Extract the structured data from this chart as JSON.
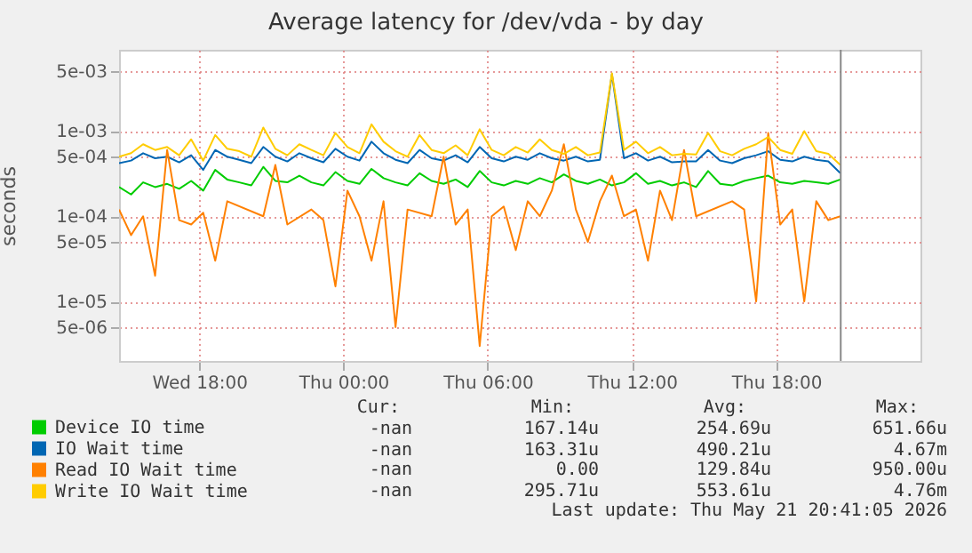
{
  "chart_data": {
    "type": "line",
    "title": "Average latency for /dev/vda - by day",
    "ylabel": "seconds",
    "log": "y",
    "grid": true,
    "legend": "bottom left",
    "x": [
      "2026-05-20T14:40",
      "2026-05-20T15:10",
      "2026-05-20T15:40",
      "2026-05-20T16:10",
      "2026-05-20T16:40",
      "2026-05-20T17:10",
      "2026-05-20T17:40",
      "2026-05-20T18:10",
      "2026-05-20T18:40",
      "2026-05-20T19:10",
      "2026-05-20T19:40",
      "2026-05-20T20:10",
      "2026-05-20T20:40",
      "2026-05-20T21:10",
      "2026-05-20T21:40",
      "2026-05-20T22:10",
      "2026-05-20T22:40",
      "2026-05-20T23:10",
      "2026-05-20T23:40",
      "2026-05-21T00:10",
      "2026-05-21T00:40",
      "2026-05-21T01:10",
      "2026-05-21T01:40",
      "2026-05-21T02:10",
      "2026-05-21T02:40",
      "2026-05-21T03:10",
      "2026-05-21T03:40",
      "2026-05-21T04:10",
      "2026-05-21T04:40",
      "2026-05-21T05:10",
      "2026-05-21T05:40",
      "2026-05-21T06:10",
      "2026-05-21T06:40",
      "2026-05-21T07:10",
      "2026-05-21T07:40",
      "2026-05-21T08:10",
      "2026-05-21T08:40",
      "2026-05-21T09:10",
      "2026-05-21T09:40",
      "2026-05-21T10:10",
      "2026-05-21T10:40",
      "2026-05-21T11:10",
      "2026-05-21T11:40",
      "2026-05-21T12:10",
      "2026-05-21T12:40",
      "2026-05-21T13:10",
      "2026-05-21T13:40",
      "2026-05-21T14:10",
      "2026-05-21T14:40",
      "2026-05-21T15:10",
      "2026-05-21T15:40",
      "2026-05-21T16:10",
      "2026-05-21T16:40",
      "2026-05-21T17:10",
      "2026-05-21T17:40",
      "2026-05-21T18:10",
      "2026-05-21T18:40",
      "2026-05-21T19:10",
      "2026-05-21T19:40",
      "2026-05-21T20:10",
      "2026-05-21T20:40"
    ],
    "xlim": [
      "2026-05-20T14:40",
      "2026-05-22T00:00"
    ],
    "xticks": [
      {
        "value": "2026-05-20T18:00",
        "label": "Wed 18:00"
      },
      {
        "value": "2026-05-21T00:00",
        "label": "Thu 00:00"
      },
      {
        "value": "2026-05-21T06:00",
        "label": "Thu 06:00"
      },
      {
        "value": "2026-05-21T12:00",
        "label": "Thu 12:00"
      },
      {
        "value": "2026-05-21T18:00",
        "label": "Thu 18:00"
      }
    ],
    "ylim": [
      2e-06,
      0.009
    ],
    "yticks": [
      {
        "value": 0.005,
        "label": "5e-03"
      },
      {
        "value": 0.001,
        "label": "1e-03"
      },
      {
        "value": 0.0005,
        "label": "5e-04"
      },
      {
        "value": 0.0001,
        "label": "1e-04"
      },
      {
        "value": 5e-05,
        "label": "5e-05"
      },
      {
        "value": 1e-05,
        "label": "1e-05"
      },
      {
        "value": 5e-06,
        "label": "5e-06"
      }
    ],
    "ref_lines": [
      {
        "axis": "x",
        "value": "2026-05-21T20:41",
        "color": "#888888"
      }
    ],
    "series": [
      {
        "name": "Device IO time",
        "color": "#00cc00",
        "values": [
          0.00022,
          0.00018,
          0.00025,
          0.00022,
          0.00024,
          0.00021,
          0.00026,
          0.0002,
          0.00035,
          0.00027,
          0.00025,
          0.00023,
          0.00038,
          0.00026,
          0.00025,
          0.0003,
          0.00025,
          0.00023,
          0.00033,
          0.00026,
          0.00024,
          0.00036,
          0.00028,
          0.00025,
          0.00023,
          0.00032,
          0.00026,
          0.00024,
          0.00027,
          0.00022,
          0.00034,
          0.00025,
          0.00023,
          0.00026,
          0.00024,
          0.00028,
          0.00025,
          0.00031,
          0.00026,
          0.00024,
          0.00027,
          0.00023,
          0.00025,
          0.00032,
          0.00024,
          0.00026,
          0.00023,
          0.00025,
          0.00022,
          0.00034,
          0.00024,
          0.00023,
          0.00026,
          0.00028,
          0.0003,
          0.00025,
          0.00024,
          0.00026,
          0.00025,
          0.00024,
          0.00027
        ]
      },
      {
        "name": "IO Wait time",
        "color": "#0066b3",
        "values": [
          0.00042,
          0.00045,
          0.00055,
          0.00048,
          0.0005,
          0.00043,
          0.00052,
          0.00035,
          0.0006,
          0.0005,
          0.00046,
          0.00042,
          0.00065,
          0.0005,
          0.00044,
          0.00055,
          0.00048,
          0.00043,
          0.00062,
          0.0005,
          0.00045,
          0.00075,
          0.00055,
          0.00046,
          0.00042,
          0.0006,
          0.00048,
          0.00045,
          0.00052,
          0.00043,
          0.00065,
          0.00048,
          0.00044,
          0.0005,
          0.00046,
          0.00055,
          0.00048,
          0.00045,
          0.0005,
          0.00044,
          0.00046,
          0.00467,
          0.00048,
          0.00055,
          0.00045,
          0.0005,
          0.00043,
          0.00044,
          0.00044,
          0.0006,
          0.00045,
          0.00042,
          0.00048,
          0.00052,
          0.00058,
          0.00046,
          0.00044,
          0.0005,
          0.00046,
          0.00044,
          0.00032
        ]
      },
      {
        "name": "Read IO Wait time",
        "color": "#ff8000",
        "values": [
          0.00012,
          6e-05,
          0.0001,
          2e-05,
          0.0006,
          9e-05,
          8e-05,
          0.00011,
          3e-05,
          0.00015,
          null,
          null,
          0.0001,
          0.0004,
          8e-05,
          null,
          0.00012,
          9e-05,
          1.5e-05,
          0.0002,
          0.0001,
          3e-05,
          0.00015,
          5e-06,
          0.00012,
          null,
          0.0001,
          0.0005,
          8e-05,
          0.00012,
          3e-06,
          0.0001,
          0.00013,
          4e-05,
          0.00015,
          0.0001,
          0.0002,
          0.0007,
          0.00012,
          5e-05,
          0.00015,
          0.0003,
          0.0001,
          0.00012,
          3e-05,
          0.0002,
          9e-05,
          0.0006,
          0.0001,
          null,
          null,
          0.00015,
          0.00012,
          1e-05,
          0.00095,
          8e-05,
          0.00012,
          1e-05,
          0.00015,
          9e-05,
          0.0001
        ]
      },
      {
        "name": "Write IO Wait time",
        "color": "#ffcc00",
        "values": [
          0.0005,
          0.00055,
          0.0007,
          0.0006,
          0.00065,
          0.00052,
          0.0008,
          0.00045,
          0.0009,
          0.00062,
          0.00058,
          0.0005,
          0.0011,
          0.00062,
          0.00052,
          0.0007,
          0.0006,
          0.00052,
          0.00095,
          0.00065,
          0.00055,
          0.0012,
          0.00075,
          0.00058,
          0.0005,
          0.0009,
          0.0006,
          0.00055,
          0.00068,
          0.00052,
          0.00105,
          0.0006,
          0.00052,
          0.00065,
          0.00056,
          0.0008,
          0.0006,
          0.00054,
          0.00065,
          0.00052,
          0.00056,
          0.00476,
          0.0006,
          0.00075,
          0.00055,
          0.00065,
          0.00052,
          0.00054,
          0.00053,
          0.00095,
          0.00058,
          0.00052,
          0.00062,
          0.0007,
          0.00085,
          0.0006,
          0.00054,
          0.001,
          0.00058,
          0.00054,
          0.0004
        ]
      }
    ],
    "annotations": [
      "Cur:",
      "Min:",
      "Avg:",
      "Max:",
      "-nan",
      "167.14u",
      "254.69u",
      "651.66u",
      "-nan",
      "163.31u",
      "490.21u",
      "4.67m",
      "-nan",
      "0.00",
      "129.84u",
      "950.00u",
      "-nan",
      "295.71u",
      "553.61u",
      "4.76m",
      "Last update: Thu May 21 20:41:05 2026"
    ]
  }
}
